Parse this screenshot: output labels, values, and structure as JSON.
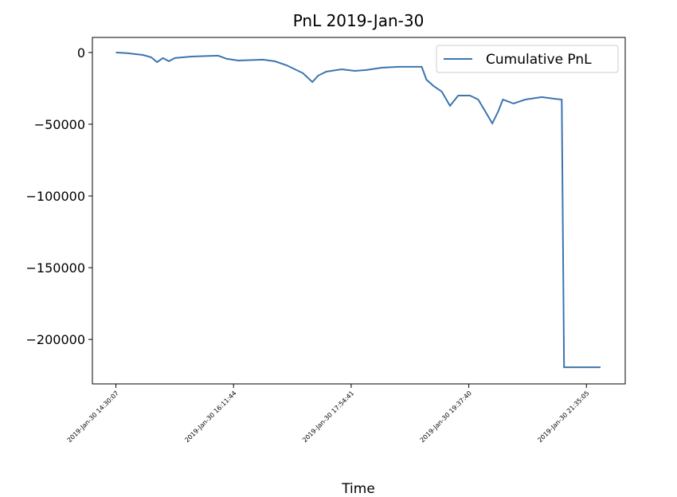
{
  "chart_data": {
    "type": "line",
    "title": "PnL 2019-Jan-30",
    "x_label": "Time",
    "x": [
      0,
      9.5,
      23,
      30,
      35,
      40,
      45,
      50,
      64,
      87,
      94,
      104,
      125,
      135,
      145,
      159,
      167,
      172,
      179,
      192,
      203,
      213,
      226,
      240,
      260,
      264,
      270,
      277,
      284,
      291,
      301,
      308,
      314,
      320,
      325,
      329,
      338,
      348,
      362,
      372,
      379,
      381,
      412
    ],
    "series": [
      {
        "name": "Cumulative PnL",
        "color": "#3b75af",
        "values": [
          0,
          -500,
          -1700,
          -3300,
          -6700,
          -3900,
          -6100,
          -3900,
          -2800,
          -2200,
          -4400,
          -5600,
          -5000,
          -6100,
          -8900,
          -14400,
          -20600,
          -16100,
          -13300,
          -11700,
          -12800,
          -12200,
          -10600,
          -10000,
          -10000,
          -18900,
          -23300,
          -27200,
          -37200,
          -30000,
          -30000,
          -32800,
          -41100,
          -49400,
          -41100,
          -32800,
          -35600,
          -32800,
          -31100,
          -32200,
          -32800,
          -219400,
          -219400
        ]
      }
    ],
    "xlim": [
      -20,
      433
    ],
    "xticks": [
      {
        "value": 0,
        "label": "2019-Jan-30 14:30:07"
      },
      {
        "value": 100,
        "label": "2019-Jan-30 16:11:44"
      },
      {
        "value": 200,
        "label": "2019-Jan-30 17:54:41"
      },
      {
        "value": 300,
        "label": "2019-Jan-30 19:37:40"
      },
      {
        "value": 400,
        "label": "2019-Jan-30 21:35:05"
      }
    ],
    "ylim": [
      -231000,
      10500
    ],
    "yticks": [
      0,
      {
        "value": -50000,
        "label": "−50000"
      },
      {
        "value": -100000,
        "label": "−100000"
      },
      {
        "value": -150000,
        "label": "−150000"
      },
      {
        "value": -200000,
        "label": "−200000"
      }
    ],
    "legend": "upper right"
  }
}
